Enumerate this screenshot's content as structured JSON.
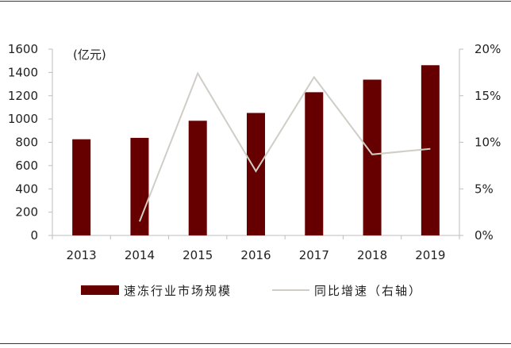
{
  "chart_data": {
    "type": "bar",
    "categories": [
      "2013",
      "2014",
      "2015",
      "2016",
      "2017",
      "2018",
      "2019"
    ],
    "series": [
      {
        "name": "速冻行业市场规模",
        "type": "bar",
        "axis": "left",
        "color": "#660000",
        "values": [
          826,
          838,
          985,
          1052,
          1230,
          1338,
          1462
        ]
      },
      {
        "name": "同比增速（右轴）",
        "type": "line",
        "axis": "right",
        "color": "#cfcdc6",
        "values": [
          null,
          1.5,
          17.4,
          6.9,
          17.0,
          8.7,
          9.3
        ]
      }
    ],
    "left_axis": {
      "unit": "(亿元)",
      "ylim": [
        0,
        1600
      ],
      "ticks": [
        "0",
        "200",
        "400",
        "600",
        "800",
        "1000",
        "1200",
        "1400",
        "1600"
      ]
    },
    "right_axis": {
      "ylim": [
        0,
        20
      ],
      "ticks": [
        "0%",
        "5%",
        "10%",
        "15%",
        "20%"
      ]
    },
    "grid": false,
    "legend": "bottom"
  }
}
